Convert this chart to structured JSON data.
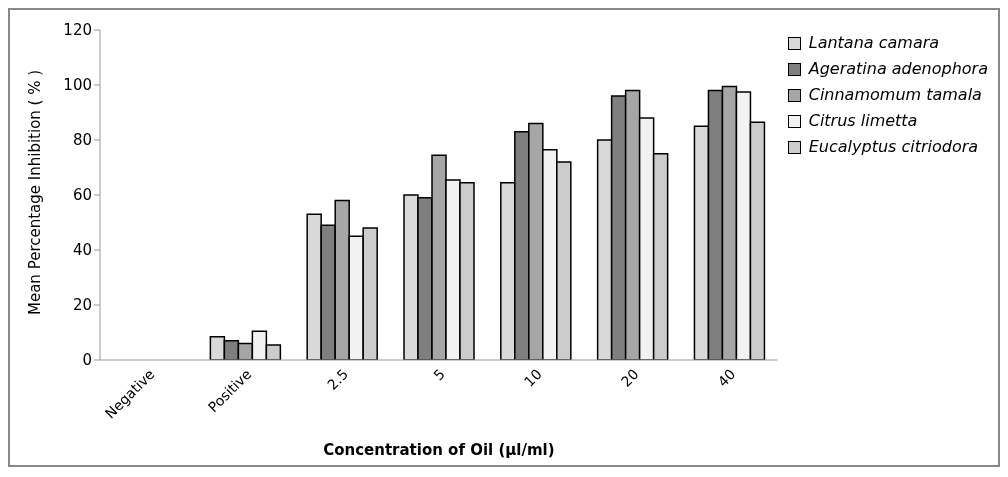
{
  "chart_data": {
    "type": "bar",
    "xlabel": "Concentration of Oil (µl/ml)",
    "ylabel": "Mean Percentage Inhibition ( % )",
    "categories": [
      "Negative",
      "Positive",
      "2.5",
      "5",
      "10",
      "20",
      "40"
    ],
    "series": [
      {
        "name": "Lantana camara",
        "color": "#d9d9d9",
        "values": [
          0,
          8.5,
          53,
          60,
          64.5,
          80,
          85
        ]
      },
      {
        "name": "Ageratina adenophora",
        "color": "#7f7f7f",
        "values": [
          0,
          7,
          49,
          59,
          83,
          96,
          98
        ]
      },
      {
        "name": "Cinnamomum tamala",
        "color": "#a6a6a6",
        "values": [
          0,
          6,
          58,
          74.5,
          86,
          98,
          99.5
        ]
      },
      {
        "name": "Citrus limetta",
        "color": "#f2f2f2",
        "values": [
          0,
          10.5,
          45,
          65.5,
          76.5,
          88,
          97.5
        ]
      },
      {
        "name": "Eucalyptus citriodora",
        "color": "#cccccc",
        "values": [
          0,
          5.5,
          48,
          64.5,
          72,
          75,
          86.5
        ]
      }
    ],
    "ylim": [
      0,
      120
    ],
    "yticks": [
      0,
      20,
      40,
      60,
      80,
      100,
      120
    ],
    "grid": false,
    "legend": "top right"
  }
}
